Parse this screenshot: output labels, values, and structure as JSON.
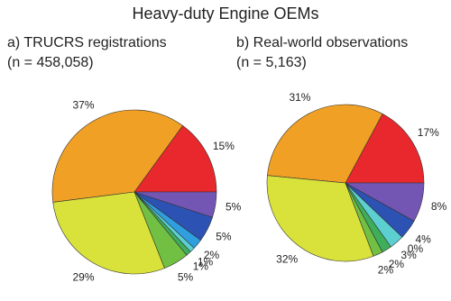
{
  "title": "Heavy-duty Engine OEMs",
  "chart_data": [
    {
      "type": "pie",
      "subtitle": [
        "a) TRUCRS registrations",
        "(n = 458,058)"
      ],
      "values": [
        15,
        37,
        29,
        5,
        1,
        1,
        2,
        5,
        5
      ],
      "value_labels": [
        "15%",
        "37%",
        "29%",
        "5%",
        "1%",
        "1%",
        "2%",
        "5%",
        "5%"
      ],
      "colors": [
        "#e8282c",
        "#f0a024",
        "#d9e23a",
        "#72c043",
        "#3fae5a",
        "#5ccfd0",
        "#2f9fe0",
        "#2c52b4",
        "#7355b3"
      ]
    },
    {
      "type": "pie",
      "subtitle": [
        "b) Real-world observations",
        "(n = 5,163)"
      ],
      "values": [
        17,
        31,
        32,
        2,
        2,
        3,
        0,
        4,
        8
      ],
      "value_labels": [
        "17%",
        "31%",
        "32%",
        "2%",
        "2%",
        "3%",
        "0%",
        "4%",
        "8%"
      ],
      "colors": [
        "#e8282c",
        "#f0a024",
        "#d9e23a",
        "#72c043",
        "#3fae5a",
        "#5ccfd0",
        "#2f9fe0",
        "#2c52b4",
        "#7355b3"
      ]
    }
  ]
}
